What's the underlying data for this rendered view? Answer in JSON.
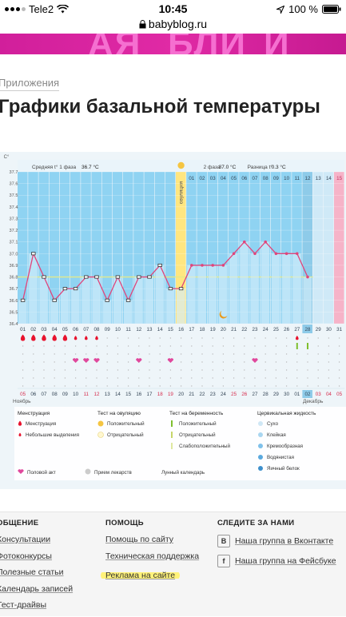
{
  "status": {
    "carrier": "Tele2",
    "time": "10:45",
    "battery": "100 %"
  },
  "browser": {
    "url": "babyblog.ru"
  },
  "page": {
    "breadcrumb": "Приложения",
    "title": "Графики базальной температуры"
  },
  "chart_data": {
    "type": "line",
    "ylabel": "C°",
    "ylim": [
      36.4,
      37.7
    ],
    "yticks": [
      "37.7",
      "37.6",
      "37.5",
      "37.4",
      "37.3",
      "37.2",
      "37.1",
      "37.0",
      "36.9",
      "36.8",
      "36.7",
      "36.6",
      "36.5",
      "36.4"
    ],
    "stats": {
      "phase1_label": "Средняя t° 1 фаза",
      "phase1_value": "36.7 °C",
      "phase2_label": "2 фаза",
      "phase2_value": "37.0 °C",
      "diff_label": "Разница t°",
      "diff_value": "0.3 °C"
    },
    "ovulation_label": "овуляция",
    "top_days": [
      "01",
      "02",
      "03",
      "04",
      "05",
      "06",
      "07",
      "08",
      "09",
      "10",
      "11",
      "12",
      "13",
      "14",
      "15"
    ],
    "cycle_days": [
      "01",
      "02",
      "03",
      "04",
      "05",
      "06",
      "07",
      "08",
      "09",
      "10",
      "11",
      "12",
      "13",
      "14",
      "15",
      "16",
      "17",
      "18",
      "19",
      "20",
      "21",
      "22",
      "23",
      "24",
      "25",
      "26",
      "27",
      "28",
      "29",
      "30",
      "31"
    ],
    "calendar_dates": [
      "05",
      "06",
      "07",
      "08",
      "09",
      "10",
      "11",
      "12",
      "13",
      "14",
      "15",
      "16",
      "17",
      "18",
      "19",
      "20",
      "21",
      "22",
      "23",
      "24",
      "25",
      "26",
      "27",
      "28",
      "29",
      "30",
      "01",
      "02",
      "03",
      "04",
      "05"
    ],
    "red_date_indices": [
      0,
      6,
      7,
      13,
      14,
      20,
      21,
      27,
      28
    ],
    "month_left": "Ноябрь",
    "month_right": "Декабрь",
    "temperatures": [
      36.6,
      37.0,
      36.8,
      36.6,
      36.7,
      36.7,
      36.8,
      36.8,
      36.6,
      36.8,
      36.6,
      36.8,
      36.8,
      36.9,
      36.7,
      36.7,
      36.9,
      36.9,
      36.9,
      36.9,
      37.0,
      37.1,
      37.0,
      37.1,
      37.0,
      37.0,
      37.0,
      36.8
    ],
    "coverline": 36.8,
    "menstruation_days": [
      1,
      2,
      3,
      4,
      5
    ],
    "spotting_days": [
      6,
      7,
      8,
      27
    ],
    "intercourse_days": [
      6,
      7,
      8,
      12,
      15,
      23
    ],
    "ovulation_test_days": [
      27,
      28
    ]
  },
  "legend": {
    "menstruation": {
      "title": "Менструация",
      "items": [
        "Менструация",
        "Небольшие выделения"
      ]
    },
    "ovulation_test": {
      "title": "Тест на овуляцию",
      "items": [
        "Положительный",
        "Отрицательный"
      ]
    },
    "pregnancy_test": {
      "title": "Тест на беременность",
      "items": [
        "Положительный",
        "Отрицательный",
        "Слабоположительный"
      ]
    },
    "cervical": {
      "title": "Цервикальная жидкость",
      "items": [
        "Сухо",
        "Клейкая",
        "Кремообразная",
        "Водянистая",
        "Яичный белок"
      ]
    },
    "bottom": [
      "Половой акт",
      "Прием лекарств",
      "Лунный календарь"
    ]
  },
  "footer": {
    "col1": {
      "title": "ОБЩЕНИЕ",
      "links": [
        "Консультации",
        "Фотоконкурсы",
        "Полезные статьи",
        "Календарь записей",
        "Тест-драйвы"
      ]
    },
    "col2": {
      "title": "ПОМОЩЬ",
      "links": [
        "Помощь по сайту",
        "Техническая поддержка",
        "Реклама на сайте"
      ]
    },
    "col3": {
      "title": "СЛЕДИТЕ ЗА НАМИ",
      "links": [
        "Наша группа в Вконтакте",
        "Наша группа на Фейсбуке"
      ]
    }
  },
  "colors": {
    "phase": "#8fd3f2",
    "ovulation": "#ffe680",
    "line": "#e0457b",
    "coverline": "#e3e98a",
    "blood": "#e8122d",
    "heart": "#e0479c",
    "positive": "#7fbf2e"
  }
}
